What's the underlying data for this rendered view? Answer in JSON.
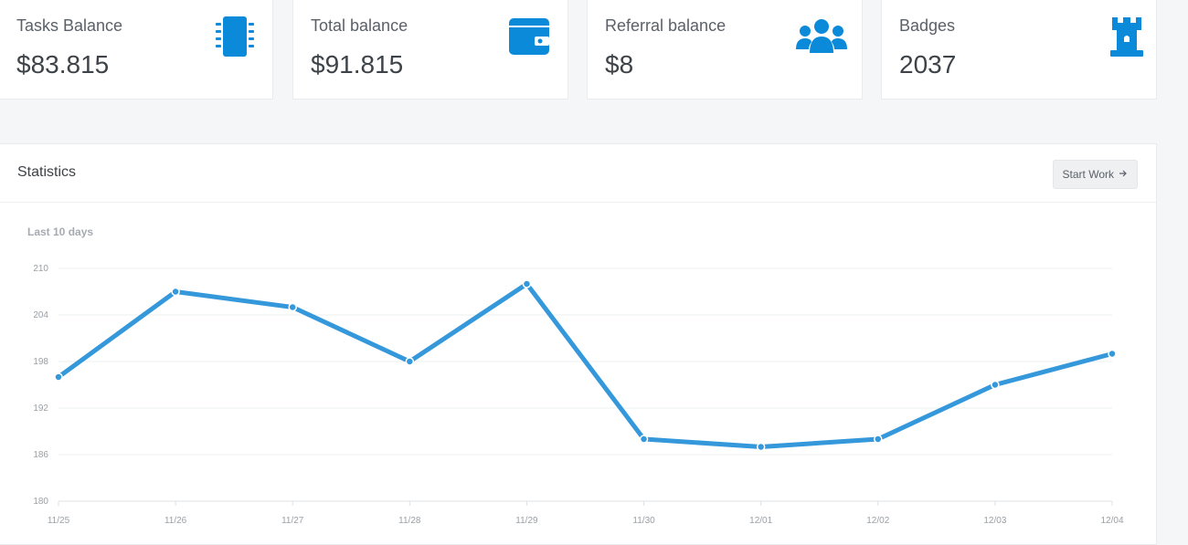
{
  "cards": [
    {
      "label": "Tasks Balance",
      "value": "$83.815",
      "icon": "chip-icon"
    },
    {
      "label": "Total balance",
      "value": "$91.815",
      "icon": "wallet-icon"
    },
    {
      "label": "Referral balance",
      "value": "$8",
      "icon": "users-icon"
    },
    {
      "label": "Badges",
      "value": "2037",
      "icon": "rook-icon"
    }
  ],
  "statistics": {
    "title": "Statistics",
    "button_label": "Start Work",
    "subtitle": "Last 10 days"
  },
  "colors": {
    "accent": "#0b8ad9",
    "line": "#3498db"
  },
  "chart_data": {
    "type": "line",
    "categories": [
      "11/25",
      "11/26",
      "11/27",
      "11/28",
      "11/29",
      "11/30",
      "12/01",
      "12/02",
      "12/03",
      "12/04"
    ],
    "series": [
      {
        "values": [
          196,
          207,
          205,
          198,
          208,
          188,
          187,
          188,
          195,
          199
        ]
      }
    ],
    "yticks": [
      210,
      204,
      198,
      192,
      186,
      180
    ],
    "ylim": [
      180,
      210
    ],
    "grid": true
  }
}
